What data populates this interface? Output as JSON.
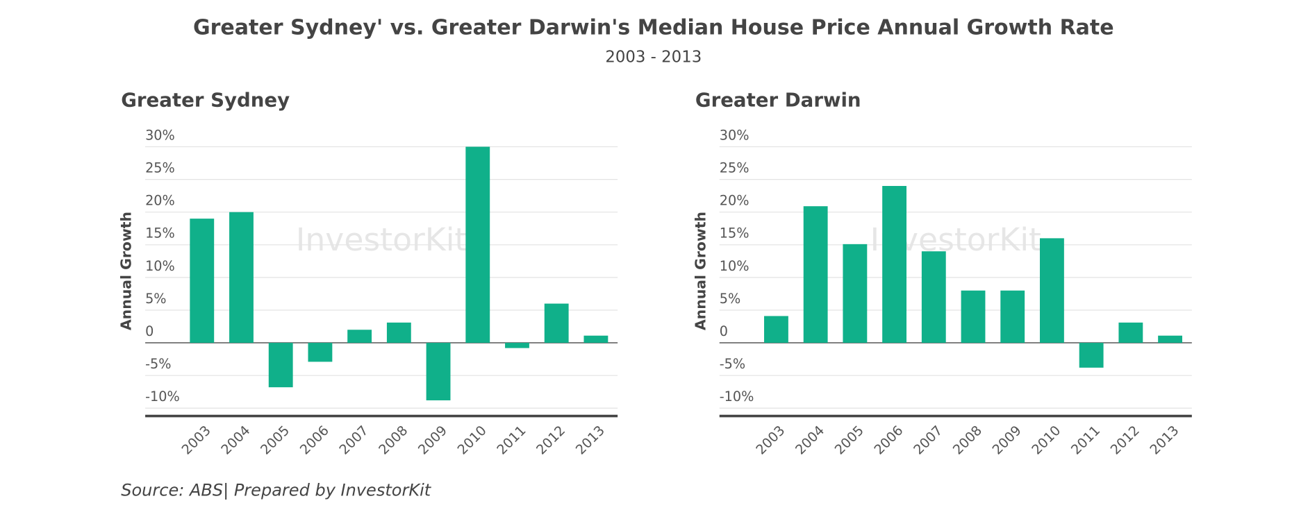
{
  "title": "Greater Sydney' vs. Greater Darwin's Median House Price Annual Growth Rate",
  "subtitle": "2003 - 2013",
  "source": "Source: ABS| Prepared by InvestorKit",
  "watermark": "InvestorKit",
  "chart_data": [
    {
      "type": "bar",
      "title": "Greater Sydney",
      "y_label": "Annual Growth",
      "categories": [
        "2003",
        "2004",
        "2005",
        "2006",
        "2007",
        "2008",
        "2009",
        "2010",
        "2011",
        "2012",
        "2013"
      ],
      "values": [
        19.0,
        20.0,
        -6.8,
        -2.9,
        2.0,
        3.1,
        -8.8,
        30.0,
        -0.8,
        6.0,
        1.1
      ],
      "color": "#10b08a",
      "ylim": [
        -11.2,
        30
      ],
      "grid": true,
      "yticks": [
        {
          "value": -10,
          "label": "-10%"
        },
        {
          "value": -5,
          "label": "-5%"
        },
        0,
        {
          "value": 5,
          "label": "5%"
        },
        {
          "value": 10,
          "label": "10%"
        },
        {
          "value": 15,
          "label": "15%"
        },
        {
          "value": 20,
          "label": "20%"
        },
        {
          "value": 25,
          "label": "25%"
        },
        {
          "value": 30,
          "label": "30%"
        }
      ]
    },
    {
      "type": "bar",
      "title": "Greater Darwin",
      "y_label": "Annual Growth",
      "categories": [
        "2003",
        "2004",
        "2005",
        "2006",
        "2007",
        "2008",
        "2009",
        "2010",
        "2011",
        "2012",
        "2013"
      ],
      "values": [
        4.1,
        20.9,
        15.1,
        24.0,
        14.0,
        8.0,
        8.0,
        16.0,
        -3.8,
        3.1,
        1.1
      ],
      "color": "#10b08a",
      "ylim": [
        -11.2,
        30
      ],
      "grid": true,
      "yticks": [
        {
          "value": -10,
          "label": "-10%"
        },
        {
          "value": -5,
          "label": "-5%"
        },
        0,
        {
          "value": 5,
          "label": "5%"
        },
        {
          "value": 10,
          "label": "10%"
        },
        {
          "value": 15,
          "label": "15%"
        },
        {
          "value": 20,
          "label": "20%"
        },
        {
          "value": 25,
          "label": "25%"
        },
        {
          "value": 30,
          "label": "30%"
        }
      ]
    }
  ]
}
